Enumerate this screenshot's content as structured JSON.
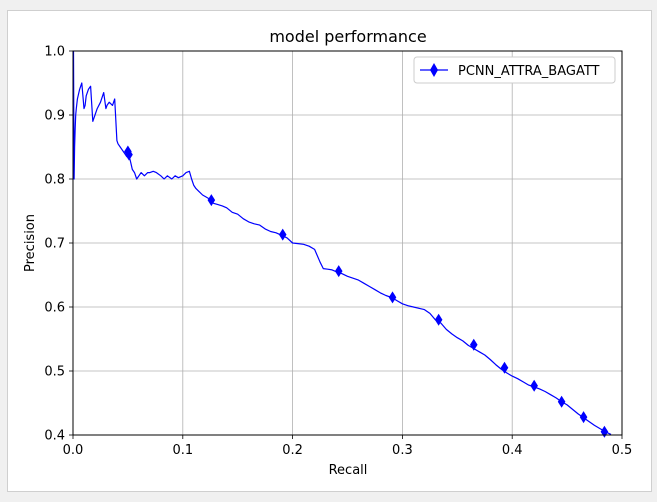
{
  "window": {
    "background": "#ffffff",
    "frame_color": "#cfcfcf"
  },
  "chart_data": {
    "type": "line",
    "title": "model performance",
    "xlabel": "Recall",
    "ylabel": "Precision",
    "xlim": [
      0.0,
      0.5
    ],
    "ylim": [
      0.4,
      1.0
    ],
    "x_ticks": [
      0.0,
      0.1,
      0.2,
      0.3,
      0.4,
      0.5
    ],
    "y_ticks": [
      0.4,
      0.5,
      0.6,
      0.7,
      0.8,
      0.9,
      1.0
    ],
    "x_tick_labels": [
      "0.0",
      "0.1",
      "0.2",
      "0.3",
      "0.4",
      "0.5"
    ],
    "y_tick_labels": [
      "0.4",
      "0.5",
      "0.6",
      "0.7",
      "0.8",
      "0.9",
      "1.0"
    ],
    "grid": true,
    "legend": {
      "position": "top-right",
      "entries": [
        "PCNN_ATTRA_BAGATT"
      ]
    },
    "series": [
      {
        "name": "PCNN_ATTRA_BAGATT",
        "color": "#0000ff",
        "marker": "thin-diamond",
        "x": [
          0.0005,
          0.001,
          0.0015,
          0.002,
          0.0025,
          0.003,
          0.004,
          0.006,
          0.008,
          0.01,
          0.011,
          0.012,
          0.014,
          0.016,
          0.018,
          0.019,
          0.02,
          0.022,
          0.025,
          0.028,
          0.03,
          0.031,
          0.033,
          0.036,
          0.038,
          0.04,
          0.041,
          0.043,
          0.045,
          0.047,
          0.049,
          0.05,
          0.052,
          0.054,
          0.056,
          0.058,
          0.06,
          0.062,
          0.065,
          0.068,
          0.07,
          0.073,
          0.076,
          0.08,
          0.083,
          0.086,
          0.09,
          0.093,
          0.096,
          0.1,
          0.103,
          0.106,
          0.108,
          0.11,
          0.112,
          0.115,
          0.118,
          0.121,
          0.125,
          0.128,
          0.132,
          0.136,
          0.14,
          0.145,
          0.15,
          0.155,
          0.16,
          0.165,
          0.17,
          0.175,
          0.18,
          0.185,
          0.19,
          0.195,
          0.2,
          0.205,
          0.21,
          0.215,
          0.22,
          0.225,
          0.228,
          0.232,
          0.236,
          0.24,
          0.245,
          0.25,
          0.255,
          0.26,
          0.265,
          0.27,
          0.275,
          0.28,
          0.285,
          0.29,
          0.295,
          0.3,
          0.305,
          0.31,
          0.315,
          0.32,
          0.325,
          0.33,
          0.335,
          0.34,
          0.345,
          0.35,
          0.355,
          0.36,
          0.365,
          0.37,
          0.375,
          0.38,
          0.385,
          0.39,
          0.395,
          0.4,
          0.405,
          0.41,
          0.415,
          0.42,
          0.425,
          0.43,
          0.435,
          0.44,
          0.445,
          0.45,
          0.455,
          0.46,
          0.465,
          0.47,
          0.475,
          0.48,
          0.485,
          0.49
        ],
        "y": [
          1.0,
          0.8,
          0.85,
          0.88,
          0.9,
          0.91,
          0.925,
          0.94,
          0.95,
          0.91,
          0.915,
          0.93,
          0.94,
          0.945,
          0.89,
          0.895,
          0.9,
          0.91,
          0.92,
          0.935,
          0.91,
          0.915,
          0.92,
          0.915,
          0.925,
          0.86,
          0.855,
          0.85,
          0.845,
          0.84,
          0.835,
          0.84,
          0.83,
          0.815,
          0.81,
          0.8,
          0.805,
          0.81,
          0.805,
          0.81,
          0.81,
          0.812,
          0.81,
          0.805,
          0.8,
          0.805,
          0.8,
          0.805,
          0.802,
          0.805,
          0.81,
          0.812,
          0.8,
          0.79,
          0.785,
          0.78,
          0.775,
          0.772,
          0.768,
          0.762,
          0.76,
          0.758,
          0.755,
          0.748,
          0.745,
          0.738,
          0.733,
          0.73,
          0.728,
          0.722,
          0.718,
          0.716,
          0.712,
          0.708,
          0.7,
          0.699,
          0.698,
          0.695,
          0.69,
          0.67,
          0.66,
          0.659,
          0.658,
          0.655,
          0.652,
          0.648,
          0.645,
          0.642,
          0.637,
          0.632,
          0.627,
          0.622,
          0.618,
          0.615,
          0.61,
          0.605,
          0.602,
          0.6,
          0.598,
          0.596,
          0.59,
          0.58,
          0.575,
          0.565,
          0.558,
          0.552,
          0.547,
          0.54,
          0.535,
          0.53,
          0.525,
          0.518,
          0.51,
          0.503,
          0.497,
          0.492,
          0.488,
          0.483,
          0.478,
          0.475,
          0.472,
          0.468,
          0.463,
          0.458,
          0.452,
          0.447,
          0.44,
          0.433,
          0.427,
          0.421,
          0.415,
          0.41,
          0.405,
          0.401
        ],
        "markers_x": [
          0.05,
          0.051,
          0.126,
          0.191,
          0.242,
          0.291,
          0.333,
          0.365,
          0.393,
          0.42,
          0.445,
          0.465,
          0.484
        ],
        "markers_y": [
          0.843,
          0.838,
          0.767,
          0.713,
          0.656,
          0.615,
          0.58,
          0.541,
          0.505,
          0.477,
          0.452,
          0.428,
          0.405
        ]
      }
    ]
  }
}
